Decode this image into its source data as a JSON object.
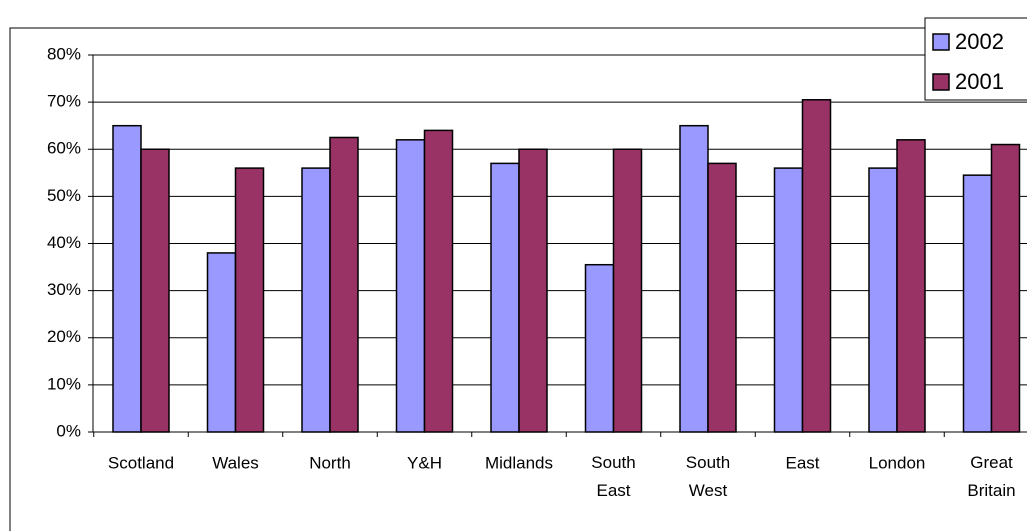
{
  "chart_data": {
    "type": "bar",
    "categories": [
      "Scotland",
      "Wales",
      "North",
      "Y&H",
      "Midlands",
      "South East",
      "South West",
      "East",
      "London",
      "Great Britain"
    ],
    "series": [
      {
        "name": "2002",
        "color": "#9999ff",
        "values": [
          65,
          38,
          56,
          62,
          57,
          35.5,
          65,
          56,
          56,
          54.5
        ]
      },
      {
        "name": "2001",
        "color": "#993366",
        "values": [
          60,
          56,
          62.5,
          64,
          60,
          60,
          57,
          70.5,
          62,
          61
        ]
      }
    ],
    "ylim": [
      0,
      80
    ],
    "yticks": [
      {
        "value": 0,
        "label": "0%"
      },
      {
        "value": 10,
        "label": "10%"
      },
      {
        "value": 20,
        "label": "20%"
      },
      {
        "value": 30,
        "label": "30%"
      },
      {
        "value": 40,
        "label": "40%"
      },
      {
        "value": 50,
        "label": "50%"
      },
      {
        "value": 60,
        "label": "60%"
      },
      {
        "value": 70,
        "label": "70%"
      },
      {
        "value": 80,
        "label": "80%"
      }
    ],
    "grid": true,
    "legend": "top-right"
  }
}
